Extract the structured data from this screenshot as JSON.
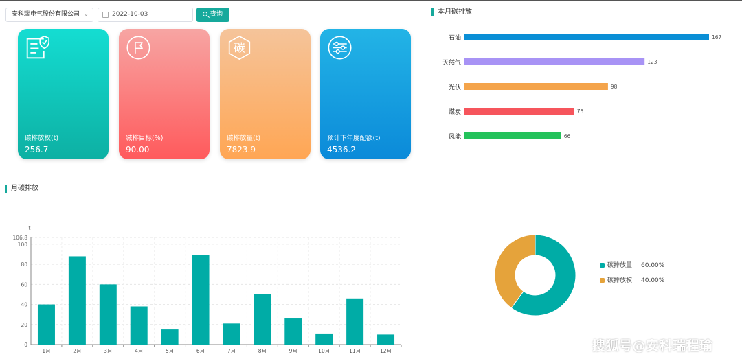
{
  "filters": {
    "company": "安科瑞电气股份有限公司",
    "date": "2022-10-03",
    "query_label": "查询"
  },
  "cards": [
    {
      "label": "碳排放权(t)",
      "value": "256.7",
      "icon": "certificate-shield-icon"
    },
    {
      "label": "减排目标(%)",
      "value": "90.00",
      "icon": "flag-icon"
    },
    {
      "label": "碳排放量(t)",
      "value": "7823.9",
      "icon": "carbon-hexagon-icon",
      "icon_text": "碳"
    },
    {
      "label": "预计下年度配额(t)",
      "value": "4536.2",
      "icon": "sliders-icon"
    }
  ],
  "sections": {
    "monthly_title": "本月碳排放",
    "yearly_title": "月碳排放"
  },
  "chart_data": [
    {
      "type": "bar",
      "orientation": "horizontal",
      "categories": [
        "石油",
        "天然气",
        "光伏",
        "煤炭",
        "风能"
      ],
      "values": [
        167,
        123,
        98,
        75,
        66
      ],
      "colors": [
        "#0a8fd6",
        "#a893f5",
        "#f4a44b",
        "#f6555c",
        "#24c25b"
      ],
      "xlim": [
        0,
        167
      ]
    },
    {
      "type": "bar",
      "categories": [
        "1月",
        "2月",
        "3月",
        "4月",
        "5月",
        "6月",
        "7月",
        "8月",
        "9月",
        "10月",
        "11月",
        "12月"
      ],
      "values": [
        40,
        88,
        60,
        38,
        15,
        89,
        21,
        50,
        26,
        11,
        46,
        10
      ],
      "ylabel": "t",
      "ylim": [
        0,
        106.8
      ],
      "yticks": [
        0,
        20,
        40,
        60,
        80,
        100
      ],
      "ymax_label": "106.8",
      "color": "#00aca6",
      "grid": true
    },
    {
      "type": "pie",
      "donut": true,
      "labels": [
        "碳排放量",
        "碳排放权"
      ],
      "values": [
        60,
        40
      ],
      "percent_labels": [
        "60.00%",
        "40.00%"
      ],
      "colors": [
        "#00aca6",
        "#e5a33b"
      ],
      "legend": "right"
    }
  ],
  "watermark": "搜狐号@安科瑞程瑜"
}
